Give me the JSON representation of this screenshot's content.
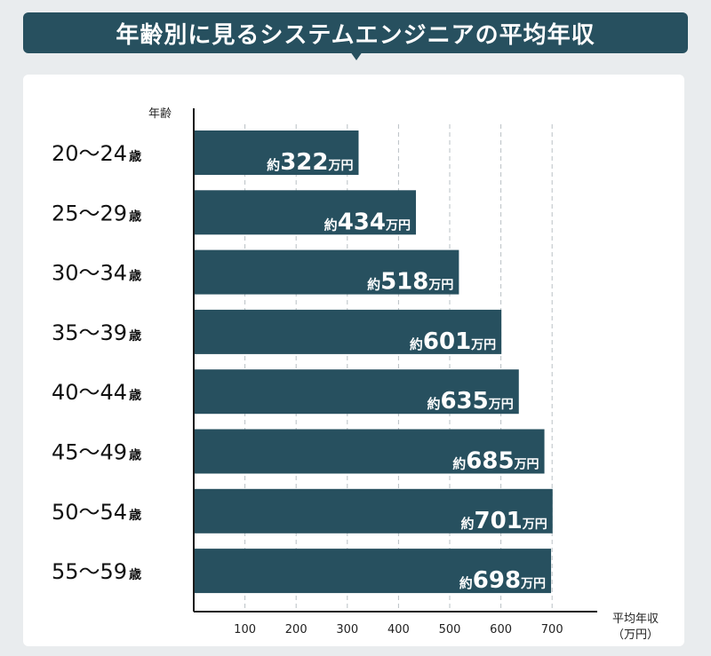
{
  "title": "年齢別に見るシステムエンジニアの平均年収",
  "chart_data": {
    "type": "bar",
    "orientation": "horizontal",
    "ylabel": "年齢",
    "xlabel": [
      "平均年収",
      "（万円）"
    ],
    "categories": [
      "20〜24歳",
      "25〜29歳",
      "30〜34歳",
      "35〜39歳",
      "40〜44歳",
      "45〜49歳",
      "50〜54歳",
      "55〜59歳"
    ],
    "category_parts": [
      {
        "range": "20〜24",
        "unit": "歳"
      },
      {
        "range": "25〜29",
        "unit": "歳"
      },
      {
        "range": "30〜34",
        "unit": "歳"
      },
      {
        "range": "35〜39",
        "unit": "歳"
      },
      {
        "range": "40〜44",
        "unit": "歳"
      },
      {
        "range": "45〜49",
        "unit": "歳"
      },
      {
        "range": "50〜54",
        "unit": "歳"
      },
      {
        "range": "55〜59",
        "unit": "歳"
      }
    ],
    "values": [
      322,
      434,
      518,
      601,
      635,
      685,
      701,
      698
    ],
    "value_label_prefix": "約",
    "value_label_suffix": "万円",
    "xticks": [
      100,
      200,
      300,
      400,
      500,
      600,
      700
    ],
    "xlim": [
      0,
      800
    ],
    "grid": "vertical-dashed",
    "bar_color": "#27505f",
    "title_bg_color": "#27505f",
    "background_color": "#e9ecee"
  }
}
